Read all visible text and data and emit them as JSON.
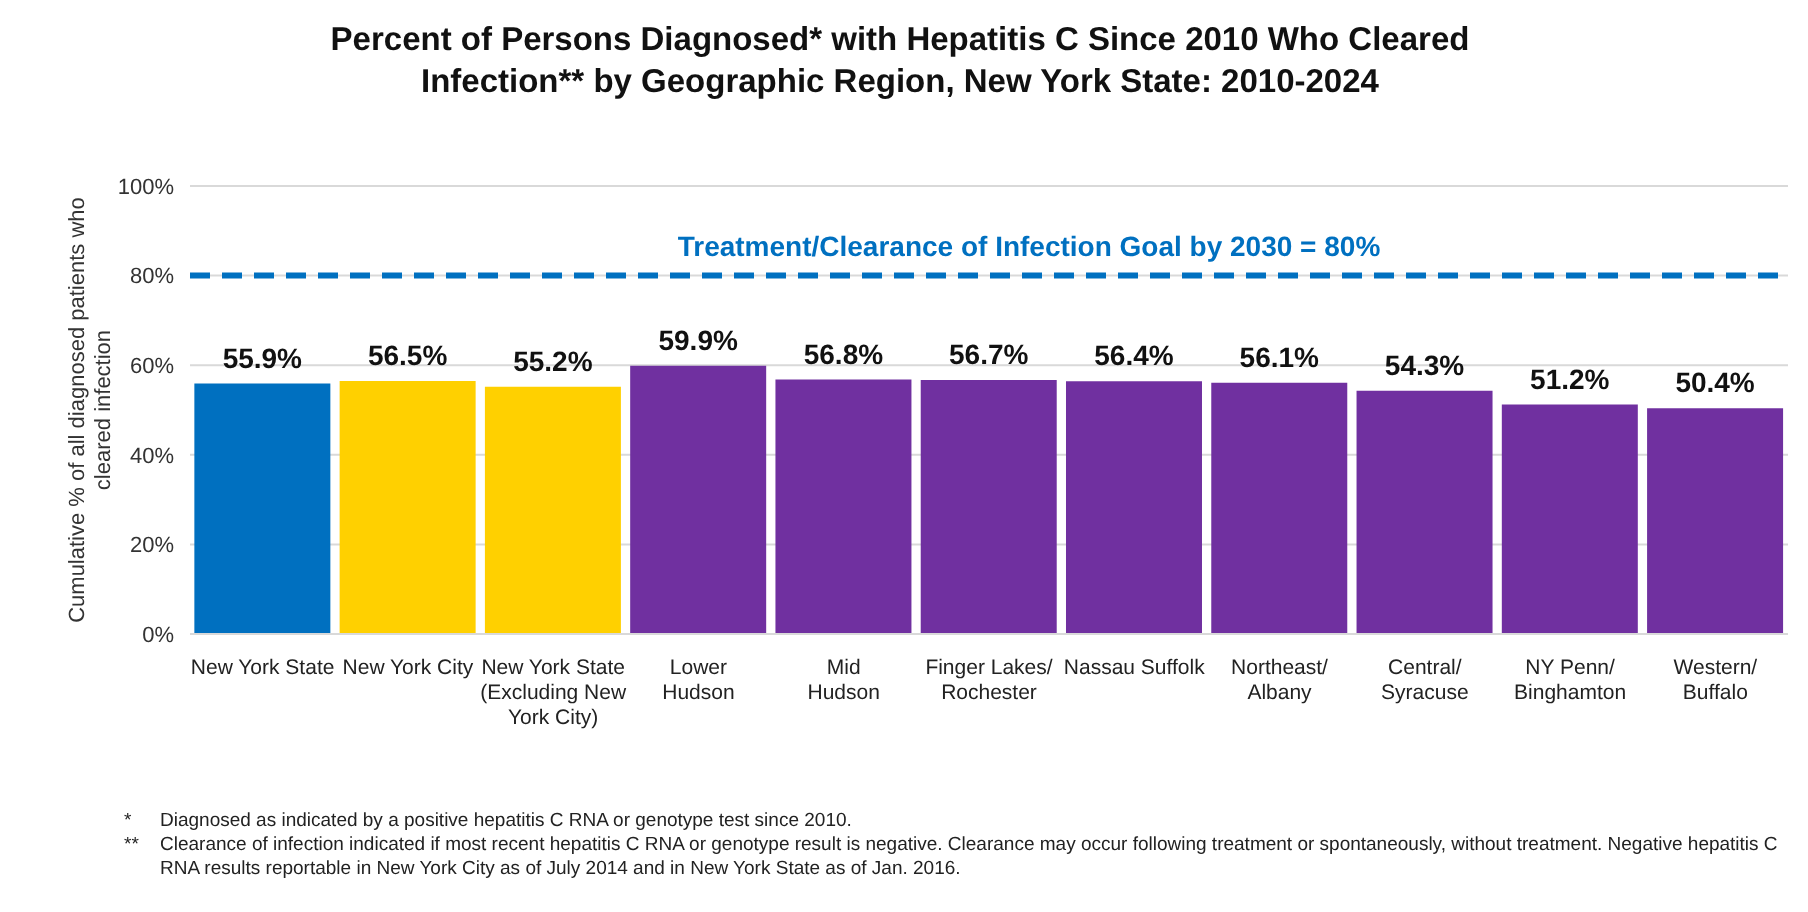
{
  "chart_data": {
    "type": "bar",
    "title": "Percent of Persons Diagnosed* with Hepatitis C Since 2010 Who Cleared Infection** by Geographic Region, New York State: 2010-2024",
    "ylabel": "Cumulative % of all diagnosed patients who cleared infection",
    "categories": [
      "New York State",
      "New York City",
      "New York State\n(Excluding New\nYork City)",
      "Lower\nHudson",
      "Mid\nHudson",
      "Finger Lakes/\nRochester",
      "Nassau Suffolk",
      "Northeast/\nAlbany",
      "Central/\nSyracuse",
      "NY Penn/\nBinghamton",
      "Western/\nBuffalo"
    ],
    "values": [
      55.9,
      56.5,
      55.2,
      59.9,
      56.8,
      56.7,
      56.4,
      56.1,
      54.3,
      51.2,
      50.4
    ],
    "colors": [
      "#0070c0",
      "#ffd000",
      "#ffd000",
      "#7030a0",
      "#7030a0",
      "#7030a0",
      "#7030a0",
      "#7030a0",
      "#7030a0",
      "#7030a0",
      "#7030a0"
    ],
    "value_labels": [
      "55.9%",
      "56.5%",
      "55.2%",
      "59.9%",
      "56.8%",
      "56.7%",
      "56.4%",
      "56.1%",
      "54.3%",
      "51.2%",
      "50.4%"
    ],
    "ylim": [
      0,
      100
    ],
    "yticks": [
      {
        "value": 0,
        "label": "0%"
      },
      {
        "value": 20,
        "label": "20%"
      },
      {
        "value": 40,
        "label": "40%"
      },
      {
        "value": 60,
        "label": "60%"
      },
      {
        "value": 80,
        "label": "80%"
      },
      {
        "value": 100,
        "label": "100%"
      }
    ],
    "grid": "y",
    "ref_lines": [
      {
        "axis": "y",
        "value": 80,
        "label": "Treatment/Clearance of Infection Goal by 2030  = 80%",
        "color": "#0070c0",
        "line_style": "dashed"
      }
    ],
    "annotations": [
      "*   Diagnosed as indicated by a positive hepatitis C RNA or genotype test since 2010.",
      "**  Clearance of infection indicated if most recent hepatitis C RNA or genotype result is negative. Clearance may occur following treatment or spontaneously, without treatment. Negative hepatitis C RNA results reportable in New York City as of July 2014 and in New York State as of Jan. 2016."
    ]
  }
}
